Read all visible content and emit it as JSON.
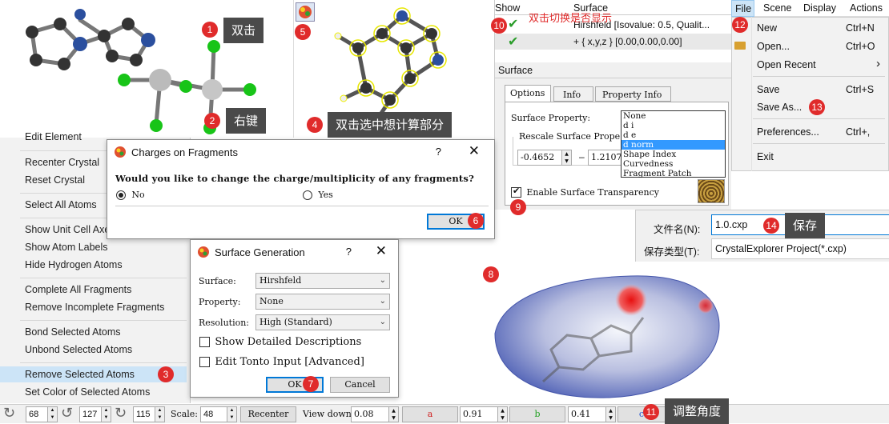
{
  "annotations": {
    "a1": {
      "num": "1",
      "text": "双击"
    },
    "a2": {
      "num": "2",
      "text": "右键"
    },
    "a3": {
      "num": "3"
    },
    "a4": {
      "num": "4",
      "text": "双击选中想计算部分"
    },
    "a5": {
      "num": "5"
    },
    "a6": {
      "num": "6"
    },
    "a7": {
      "num": "7"
    },
    "a8": {
      "num": "8"
    },
    "a9": {
      "num": "9"
    },
    "a10": {
      "num": "10",
      "text": "双击切换是否显示"
    },
    "a11": {
      "num": "11",
      "text": "调整角度"
    },
    "a12": {
      "num": "12"
    },
    "a13": {
      "num": "13"
    },
    "a14": {
      "num": "14",
      "text": "保存"
    }
  },
  "context_menu": {
    "items": [
      "Edit Element",
      "Recenter Crystal",
      "Reset Crystal",
      "Select All Atoms",
      "Show Unit Cell Axes",
      "Show Atom Labels",
      "Hide Hydrogen Atoms",
      "Complete All Fragments",
      "Remove Incomplete Fragments",
      "Bond Selected Atoms",
      "Unbond Selected Atoms",
      "Remove Selected Atoms",
      "Set Color of Selected Atoms"
    ]
  },
  "charges_dialog": {
    "title": "Charges on Fragments",
    "help": "?",
    "close": "✕",
    "question": "Would you like to change the charge/multiplicity of any fragments?",
    "no": "No",
    "yes": "Yes",
    "ok": "OK"
  },
  "surface_dialog": {
    "title": "Surface Generation",
    "help": "?",
    "close": "✕",
    "surface_label": "Surface:",
    "surface_value": "Hirshfeld",
    "property_label": "Property:",
    "property_value": "None",
    "resolution_label": "Resolution:",
    "resolution_value": "High (Standard)",
    "show_detailed": "Show Detailed Descriptions",
    "edit_tonto": "Edit Tonto Input [Advanced]",
    "ok": "OK",
    "cancel": "Cancel"
  },
  "surface_list": {
    "show_header": "Show",
    "surface_header": "Surface",
    "rows": [
      "Hirshfeld [Isovalue: 0.5, Qualit...",
      "+ { x,y,z } [0.00,0.00,0.00]"
    ]
  },
  "surface_panel": {
    "title": "Surface",
    "tabs": [
      "Options",
      "Info",
      "Property Info"
    ],
    "surface_property_label": "Surface Property:",
    "rescale_label": "Rescale Surface Prope",
    "min_value": "-0.4652",
    "dash": "–",
    "max_value": "1.2107",
    "transparency_label": "Enable Surface Transparency",
    "property_options": [
      "None",
      "d i",
      "d e",
      "d norm",
      "Shape Index",
      "Curvedness",
      "Fragment Patch"
    ],
    "selected_option": "d norm"
  },
  "menubar": {
    "items": [
      "File",
      "Scene",
      "Display",
      "Actions"
    ]
  },
  "file_menu": {
    "new": "New",
    "new_sc": "Ctrl+N",
    "open": "Open...",
    "open_sc": "Ctrl+O",
    "open_recent": "Open Recent",
    "open_recent_arrow": "›",
    "save": "Save",
    "save_sc": "Ctrl+S",
    "save_as": "Save As...",
    "preferences": "Preferences...",
    "preferences_sc": "Ctrl+,",
    "exit": "Exit"
  },
  "save_dialog": {
    "filename_label": "文件名(N):",
    "filename_value": "1.0.cxp",
    "filetype_label": "保存类型(T):",
    "filetype_value": "CrystalExplorer Project(*.cxp)"
  },
  "bottom_toolbar": {
    "rot_x": "68",
    "rot_y": "127",
    "rot_z": "115",
    "scale_label": "Scale:",
    "scale_value": "48",
    "recenter": "Recenter",
    "view_down_label": "View down:",
    "a_value": "0.08",
    "a_label": "a",
    "b_value": "0.91",
    "b_label": "b",
    "c_value": "0.41",
    "c_label": "c"
  },
  "colors": {
    "badge": "#e02b2b",
    "label_bg": "#4a4a4a",
    "selection": "#3399ff",
    "highlight_item": "#cce4f7"
  }
}
